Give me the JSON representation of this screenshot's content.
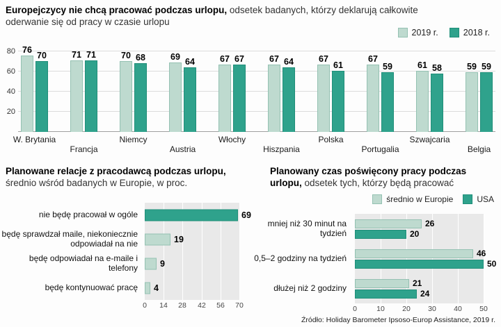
{
  "colors": {
    "series_light": "#bedacf",
    "series_dark": "#2fa28c"
  },
  "source": "Źródło: Holiday Barometer Ipsoso-Europ Assistance, 2019 r.",
  "chart_data": [
    {
      "id": "top-grouped-bars",
      "type": "bar",
      "title_bold": "Europejczycy nie chcą pracować podczas urlopu,",
      "title_rest": " odsetek badanych, którzy deklarują całkowite oderwanie się od pracy w czasie urlopu",
      "categories": [
        "W. Brytania",
        "Francja",
        "Niemcy",
        "Austria",
        "Włochy",
        "Hiszpania",
        "Polska",
        "Portugalia",
        "Szwajcaria",
        "Belgia"
      ],
      "series": [
        {
          "name": "2019 r.",
          "values": [
            76,
            71,
            70,
            69,
            67,
            67,
            67,
            67,
            61,
            59
          ]
        },
        {
          "name": "2018 r.",
          "values": [
            70,
            71,
            68,
            64,
            67,
            64,
            61,
            59,
            58,
            59
          ]
        }
      ],
      "ylim": [
        0,
        80
      ],
      "yticks": [
        20,
        40,
        60,
        80
      ],
      "legend_position": "top-right",
      "grid": true
    },
    {
      "id": "bottom-left-bars",
      "type": "bar-horizontal",
      "title_bold": "Planowane relacje z pracodawcą podczas urlopu,",
      "title_rest": " średnio wśród badanych w Europie, w proc.",
      "categories": [
        "nie będę pracował w ogóle",
        "będę sprawdzał maile, niekoniecznie odpowiadał na nie",
        "będę odpowiadał na e-maile i telefony",
        "będę kontynuować pracę"
      ],
      "values": [
        69,
        19,
        9,
        4
      ],
      "bar_colors": [
        "dark",
        "light",
        "light",
        "light"
      ],
      "xlim": [
        0,
        70
      ],
      "xticks": [
        0,
        14,
        28,
        42,
        56,
        70
      ],
      "grid": true
    },
    {
      "id": "bottom-right-grouped-bars",
      "type": "bar-horizontal-grouped",
      "title_bold": "Planowany czas poświęcony pracy podczas urlopu,",
      "title_rest": " odsetek tych, którzy będą pracować",
      "categories": [
        "mniej niż 30 minut na tydzień",
        "0,5–2 godziny na tydzień",
        "dłużej niż 2 godziny"
      ],
      "series": [
        {
          "name": "średnio w Europie",
          "values": [
            26,
            46,
            21
          ]
        },
        {
          "name": "USA",
          "values": [
            20,
            50,
            24
          ]
        }
      ],
      "xlim": [
        0,
        50
      ],
      "xticks": [
        0,
        10,
        20,
        30,
        40,
        50
      ],
      "legend_position": "top-right",
      "grid": true
    }
  ]
}
